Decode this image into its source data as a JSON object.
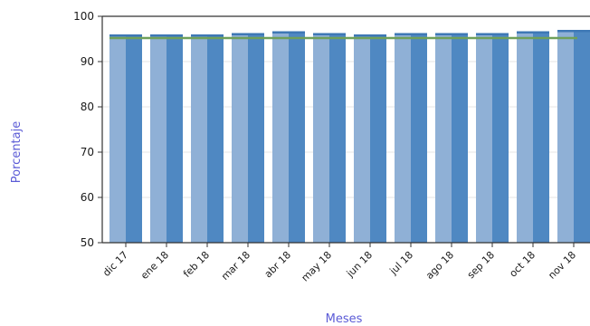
{
  "chart_data": {
    "type": "bar",
    "title": "",
    "xlabel": "Meses",
    "ylabel": "Porcentaje",
    "ylim": [
      50,
      100
    ],
    "yticks": [
      50,
      60,
      70,
      80,
      90,
      100
    ],
    "grid": true,
    "categories": [
      "dic 17",
      "ene 18",
      "feb 18",
      "mar 18",
      "abr 18",
      "may 18",
      "jun 18",
      "jul 18",
      "ago 18",
      "sep 18",
      "oct 18",
      "nov 18"
    ],
    "values": [
      96,
      96,
      96,
      96.3,
      96.7,
      96.3,
      96,
      96.3,
      96.3,
      96.3,
      96.7,
      97
    ],
    "reference_line": 95.2,
    "colors": {
      "bar_light": "#8fb0d6",
      "bar_dark": "#4f88c2",
      "reference": "#6fa05a",
      "axis_title": "#5b5bd6"
    }
  }
}
